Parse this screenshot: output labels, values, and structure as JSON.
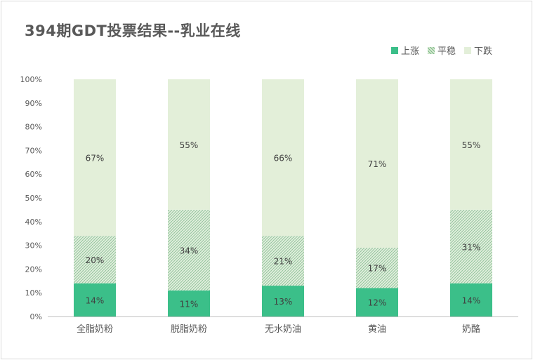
{
  "title": "394期GDT投票结果--乳业在线",
  "legend": [
    {
      "label": "上涨",
      "color": "#3bbf89",
      "pattern": "solid"
    },
    {
      "label": "平稳",
      "color": "#9fc9a6",
      "pattern": "hatch"
    },
    {
      "label": "下跌",
      "color": "#e3efd9",
      "pattern": "solid"
    }
  ],
  "chart_data": {
    "type": "bar",
    "stacked": true,
    "categories": [
      "全脂奶粉",
      "脱脂奶粉",
      "无水奶油",
      "黄油",
      "奶酪"
    ],
    "series": [
      {
        "name": "上涨",
        "values": [
          14,
          11,
          13,
          12,
          14
        ],
        "labels": [
          "14%",
          "11%",
          "13%",
          "12%",
          "14%"
        ]
      },
      {
        "name": "平稳",
        "values": [
          20,
          34,
          21,
          17,
          31
        ],
        "labels": [
          "20%",
          "34%",
          "21%",
          "17%",
          "31%"
        ]
      },
      {
        "name": "下跌",
        "values": [
          67,
          55,
          66,
          71,
          55
        ],
        "labels": [
          "67%",
          "55%",
          "66%",
          "71%",
          "55%"
        ]
      }
    ],
    "ylim": [
      0,
      100
    ],
    "yticks": [
      "0%",
      "10%",
      "20%",
      "30%",
      "40%",
      "50%",
      "60%",
      "70%",
      "80%",
      "90%",
      "100%"
    ],
    "legend_position": "top-right",
    "grid": false
  }
}
